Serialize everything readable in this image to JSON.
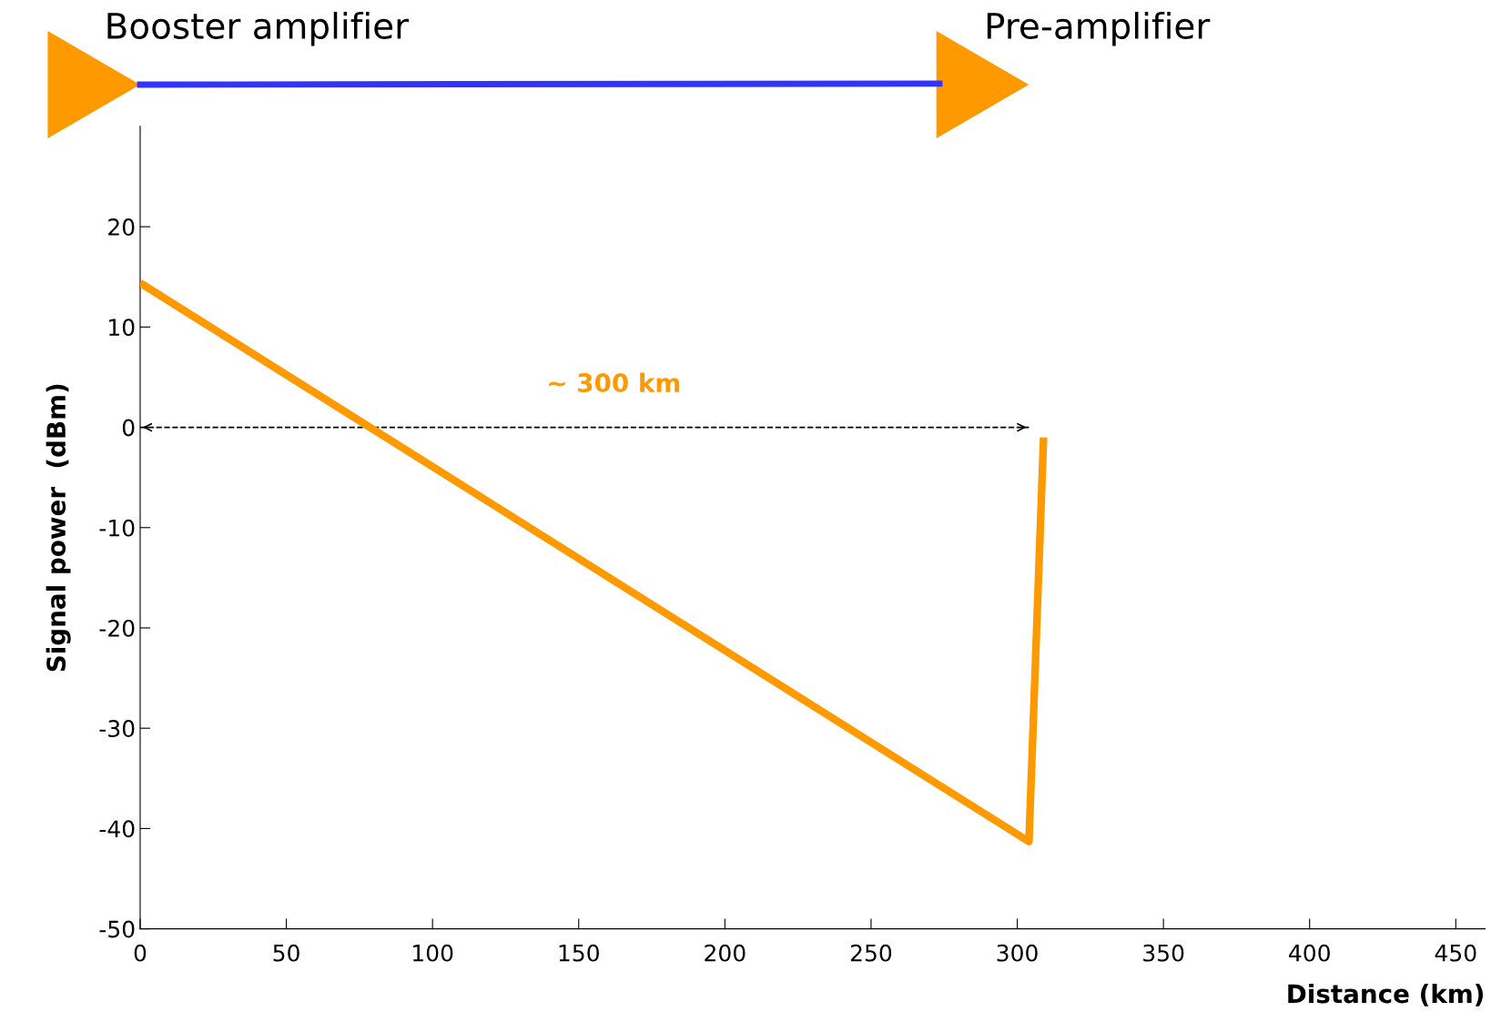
{
  "chart_data": {
    "type": "line",
    "xlabel": "Distance (km)",
    "ylabel": "Signal power  (dBm)",
    "x": [
      0,
      304,
      309
    ],
    "series": [
      {
        "color": "#ff9900",
        "values": [
          14.4,
          -41.3,
          -1.0
        ]
      },
      {
        "type": "line",
        "x": [
          0,
          304
        ],
        "values": [
          0,
          0
        ],
        "color": "#000000",
        "line_style": "dashed"
      }
    ],
    "xlim": [
      0,
      460
    ],
    "ylim": [
      -50,
      30
    ],
    "xticks": [
      0,
      50,
      100,
      150,
      200,
      250,
      300,
      350,
      400,
      450
    ],
    "yticks": [
      -50,
      -40,
      -30,
      -20,
      -10,
      0,
      10,
      20
    ],
    "grid": false,
    "legend": false,
    "marker": "none",
    "line_style": "solid",
    "annotations": [
      "Booster amplifier",
      "Pre-amplifier",
      "~ 300 km"
    ]
  }
}
